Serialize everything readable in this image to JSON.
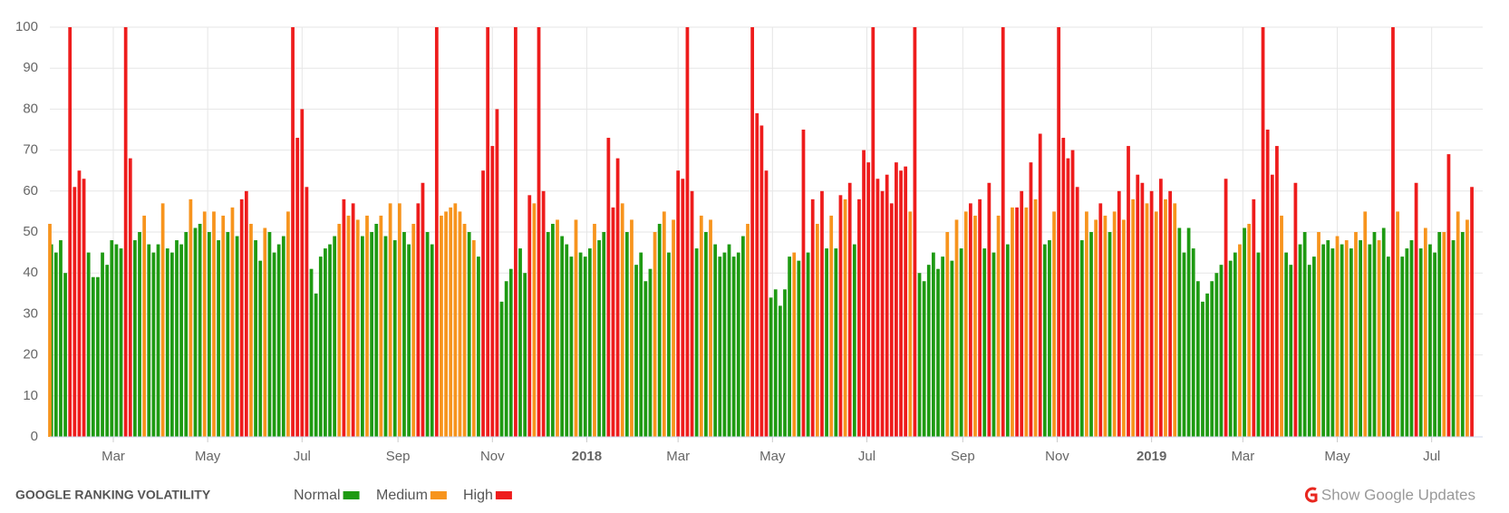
{
  "chart_data": {
    "type": "bar",
    "title": "GOOGLE RANKING VOLATILITY",
    "button": "Show Google Updates",
    "xlim": [
      0,
      926
    ],
    "ylim": [
      0,
      100
    ],
    "yticks": [
      0,
      10,
      20,
      30,
      40,
      50,
      60,
      70,
      80,
      90,
      100
    ],
    "xticks": [
      {
        "value": 41,
        "label": "Mar"
      },
      {
        "value": 102,
        "label": "May"
      },
      {
        "value": 163,
        "label": "Jul"
      },
      {
        "value": 225,
        "label": "Sep"
      },
      {
        "value": 286,
        "label": "Nov"
      },
      {
        "value": 347,
        "label": "2018"
      },
      {
        "value": 406,
        "label": "Mar"
      },
      {
        "value": 467,
        "label": "May"
      },
      {
        "value": 528,
        "label": "Jul"
      },
      {
        "value": 590,
        "label": "Sep"
      },
      {
        "value": 651,
        "label": "Nov"
      },
      {
        "value": 712,
        "label": "2019"
      },
      {
        "value": 771,
        "label": "Mar"
      },
      {
        "value": 832,
        "label": "May"
      },
      {
        "value": 893,
        "label": "Jul"
      }
    ],
    "grid": true,
    "series": [
      {
        "name": "Normal",
        "color": "#1e9a12",
        "x": [
          1,
          4,
          7,
          10,
          25,
          28,
          31,
          34,
          37,
          40,
          43,
          46,
          55,
          58,
          64,
          67,
          70,
          76,
          79,
          82,
          85,
          88,
          94,
          97,
          103,
          109,
          115,
          121,
          133,
          136,
          142,
          145,
          148,
          151,
          169,
          172,
          175,
          178,
          181,
          184,
          202,
          208,
          211,
          217,
          223,
          229,
          232,
          244,
          247,
          271,
          277,
          292,
          295,
          298,
          304,
          307,
          322,
          325,
          331,
          334,
          337,
          343,
          346,
          349,
          355,
          358,
          373,
          379,
          382,
          385,
          388,
          394,
          400,
          418,
          424,
          430,
          433,
          436,
          439,
          442,
          445,
          448,
          466,
          469,
          472,
          475,
          478,
          484,
          490,
          502,
          508,
          520,
          562,
          565,
          568,
          571,
          574,
          577,
          583,
          589,
          604,
          610,
          619,
          643,
          646,
          667,
          673,
          685,
          730,
          733,
          736,
          739,
          742,
          745,
          748,
          751,
          754,
          757,
          763,
          766,
          772,
          781,
          799,
          802,
          808,
          811,
          814,
          817,
          823,
          826,
          829,
          835,
          841,
          847,
          853,
          856,
          862,
          865,
          874,
          877,
          880,
          886,
          892,
          895,
          898,
          907,
          913
        ],
        "values": [
          47,
          45,
          48,
          40,
          45,
          39,
          39,
          45,
          42,
          48,
          47,
          46,
          48,
          50,
          47,
          45,
          47,
          46,
          45,
          48,
          47,
          50,
          51,
          52,
          50,
          48,
          50,
          49,
          48,
          43,
          50,
          45,
          47,
          49,
          41,
          35,
          44,
          46,
          47,
          49,
          49,
          50,
          52,
          49,
          48,
          50,
          47,
          50,
          47,
          50,
          44,
          33,
          38,
          41,
          46,
          40,
          50,
          52,
          49,
          47,
          44,
          45,
          44,
          46,
          48,
          50,
          50,
          42,
          45,
          38,
          41,
          52,
          45,
          46,
          50,
          47,
          44,
          45,
          47,
          44,
          45,
          49,
          34,
          36,
          32,
          36,
          44,
          43,
          45,
          46,
          46,
          47,
          40,
          38,
          42,
          45,
          41,
          44,
          43,
          46,
          46,
          45,
          47,
          47,
          48,
          48,
          50,
          50,
          51,
          45,
          51,
          46,
          38,
          33,
          35,
          38,
          40,
          42,
          43,
          45,
          51,
          45,
          45,
          42,
          47,
          50,
          42,
          44,
          47,
          48,
          46,
          47,
          46,
          48,
          47,
          50,
          51,
          44,
          44,
          46,
          48,
          46,
          47,
          45,
          50,
          48,
          50
        ]
      },
      {
        "name": "Medium",
        "color": "#f7941d",
        "x": [
          0,
          61,
          73,
          91,
          100,
          106,
          112,
          118,
          130,
          139,
          154,
          187,
          193,
          199,
          205,
          214,
          220,
          226,
          235,
          253,
          256,
          259,
          262,
          265,
          268,
          274,
          313,
          328,
          340,
          352,
          370,
          376,
          391,
          397,
          403,
          421,
          427,
          451,
          481,
          496,
          505,
          514,
          556,
          580,
          586,
          592,
          598,
          613,
          622,
          631,
          637,
          649,
          670,
          676,
          682,
          688,
          694,
          700,
          709,
          715,
          721,
          727,
          769,
          775,
          796,
          820,
          832,
          838,
          844,
          850,
          859,
          871,
          889,
          901,
          910,
          916
        ],
        "values": [
          52,
          54,
          57,
          58,
          55,
          55,
          54,
          56,
          52,
          51,
          55,
          52,
          54,
          53,
          54,
          54,
          57,
          57,
          52,
          54,
          55,
          56,
          57,
          55,
          52,
          48,
          57,
          53,
          53,
          52,
          57,
          53,
          50,
          55,
          53,
          54,
          53,
          52,
          45,
          52,
          54,
          58,
          55,
          50,
          53,
          55,
          54,
          54,
          56,
          56,
          58,
          55,
          55,
          53,
          54,
          55,
          53,
          58,
          57,
          55,
          58,
          57,
          47,
          52,
          54,
          50,
          49,
          48,
          50,
          55,
          48,
          55,
          51,
          50,
          55,
          53
        ]
      },
      {
        "name": "High",
        "color": "#ee1c1c",
        "x": [
          13,
          16,
          19,
          22,
          49,
          52,
          124,
          127,
          157,
          160,
          163,
          166,
          190,
          196,
          238,
          241,
          250,
          280,
          283,
          286,
          289,
          301,
          310,
          316,
          319,
          361,
          364,
          367,
          406,
          409,
          412,
          415,
          454,
          457,
          460,
          463,
          487,
          493,
          499,
          511,
          517,
          523,
          526,
          529,
          532,
          535,
          538,
          541,
          544,
          547,
          550,
          553,
          559,
          595,
          601,
          607,
          616,
          625,
          628,
          634,
          640,
          652,
          655,
          658,
          661,
          664,
          679,
          691,
          697,
          703,
          706,
          712,
          718,
          724,
          760,
          778,
          784,
          787,
          790,
          793,
          805,
          868,
          883,
          904,
          919
        ],
        "values": [
          100,
          61,
          65,
          63,
          100,
          68,
          58,
          60,
          100,
          73,
          80,
          61,
          58,
          57,
          57,
          62,
          100,
          65,
          100,
          71,
          80,
          100,
          59,
          100,
          60,
          73,
          56,
          68,
          65,
          63,
          100,
          60,
          100,
          79,
          76,
          65,
          75,
          58,
          60,
          59,
          62,
          58,
          70,
          67,
          100,
          63,
          60,
          64,
          57,
          67,
          65,
          66,
          100,
          57,
          58,
          62,
          100,
          56,
          60,
          67,
          74,
          100,
          73,
          68,
          70,
          61,
          57,
          60,
          71,
          64,
          62,
          60,
          63,
          60,
          63,
          58,
          100,
          75,
          64,
          71,
          62,
          100,
          62,
          69,
          61
        ]
      }
    ]
  }
}
